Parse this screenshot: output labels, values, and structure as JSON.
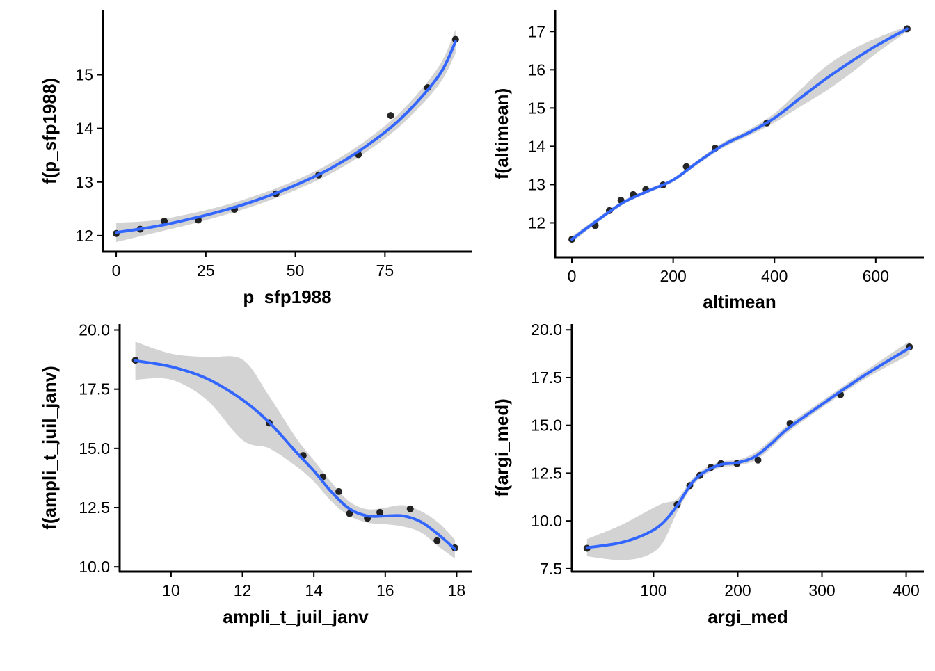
{
  "colors": {
    "line": "#3366FF",
    "ribbon": "#D3D3D3",
    "point": "#000000",
    "axis": "#000000"
  },
  "chart_data": [
    {
      "type": "scatter",
      "xlabel": "p_sfp1988",
      "ylabel": "f(p_sfp1988)",
      "xlim": [
        -3.7,
        99.2
      ],
      "ylim": [
        11.7,
        16.2
      ],
      "xticks": [
        0,
        25,
        50,
        75
      ],
      "yticks": [
        12,
        13,
        14,
        15
      ],
      "ytick_labels": [
        "12",
        "13",
        "14",
        "15"
      ],
      "points": [
        [
          0,
          12.04
        ],
        [
          6.7,
          12.12
        ],
        [
          13.4,
          12.27
        ],
        [
          22.9,
          12.29
        ],
        [
          33.0,
          12.49
        ],
        [
          44.6,
          12.78
        ],
        [
          56.5,
          13.13
        ],
        [
          67.6,
          13.51
        ],
        [
          76.6,
          14.24
        ],
        [
          86.9,
          14.76
        ],
        [
          94.7,
          15.66
        ]
      ],
      "smooth": [
        [
          0,
          12.06
        ],
        [
          10,
          12.16
        ],
        [
          20,
          12.3
        ],
        [
          30,
          12.47
        ],
        [
          40,
          12.68
        ],
        [
          50,
          12.94
        ],
        [
          60,
          13.26
        ],
        [
          70,
          13.68
        ],
        [
          80,
          14.22
        ],
        [
          90,
          14.98
        ],
        [
          94.7,
          15.62
        ]
      ],
      "ribbon_halfwidth": [
        0.18,
        0.12,
        0.1,
        0.09,
        0.09,
        0.09,
        0.1,
        0.11,
        0.13,
        0.17,
        0.22
      ],
      "grid": false
    },
    {
      "type": "scatter",
      "xlabel": "altimean",
      "ylabel": "f(altimean)",
      "xlim": [
        -33,
        695
      ],
      "ylim": [
        11.1,
        17.55
      ],
      "xticks": [
        0,
        200,
        400,
        600
      ],
      "yticks": [
        12,
        13,
        14,
        15,
        16,
        17
      ],
      "ytick_labels": [
        "12",
        "13",
        "14",
        "15",
        "16",
        "17"
      ],
      "points": [
        [
          0,
          11.57
        ],
        [
          46,
          11.93
        ],
        [
          74,
          12.32
        ],
        [
          97,
          12.59
        ],
        [
          121,
          12.74
        ],
        [
          146,
          12.87
        ],
        [
          180,
          12.99
        ],
        [
          226,
          13.47
        ],
        [
          283,
          13.95
        ],
        [
          385,
          14.61
        ],
        [
          662,
          17.07
        ]
      ],
      "smooth": [
        [
          0,
          11.57
        ],
        [
          50,
          12.06
        ],
        [
          100,
          12.52
        ],
        [
          150,
          12.83
        ],
        [
          200,
          13.12
        ],
        [
          250,
          13.6
        ],
        [
          300,
          14.04
        ],
        [
          350,
          14.36
        ],
        [
          400,
          14.74
        ],
        [
          450,
          15.25
        ],
        [
          500,
          15.75
        ],
        [
          550,
          16.2
        ],
        [
          600,
          16.62
        ],
        [
          662,
          17.07
        ]
      ],
      "ribbon_halfwidth": [
        0.08,
        0.06,
        0.05,
        0.05,
        0.05,
        0.06,
        0.07,
        0.08,
        0.12,
        0.22,
        0.32,
        0.3,
        0.2,
        0.07
      ],
      "grid": false
    },
    {
      "type": "scatter",
      "xlabel": "ampli_t_juil_janv",
      "ylabel": "f(ampli_t_juil_janv)",
      "xlim": [
        8.56,
        18.42
      ],
      "ylim": [
        9.8,
        20.25
      ],
      "xticks": [
        10,
        12,
        14,
        16,
        18
      ],
      "yticks": [
        10,
        12.5,
        15,
        17.5,
        20
      ],
      "ytick_labels": [
        "10.0",
        "12.5",
        "15.0",
        "17.5",
        "20.0"
      ],
      "points": [
        [
          9.0,
          18.72
        ],
        [
          12.75,
          16.07
        ],
        [
          13.7,
          14.7
        ],
        [
          14.25,
          13.8
        ],
        [
          14.7,
          13.18
        ],
        [
          15.0,
          12.25
        ],
        [
          15.5,
          12.05
        ],
        [
          15.85,
          12.3
        ],
        [
          16.7,
          12.45
        ],
        [
          17.45,
          11.1
        ],
        [
          17.95,
          10.8
        ]
      ],
      "smooth": [
        [
          9.0,
          18.7
        ],
        [
          10.0,
          18.45
        ],
        [
          11.0,
          17.95
        ],
        [
          12.0,
          17.05
        ],
        [
          12.75,
          16.1
        ],
        [
          13.5,
          14.85
        ],
        [
          14.0,
          14.05
        ],
        [
          14.5,
          13.15
        ],
        [
          15.0,
          12.45
        ],
        [
          15.5,
          12.15
        ],
        [
          16.0,
          12.15
        ],
        [
          16.5,
          12.15
        ],
        [
          17.0,
          11.9
        ],
        [
          17.5,
          11.35
        ],
        [
          17.95,
          10.75
        ]
      ],
      "ribbon_halfwidth": [
        0.8,
        0.55,
        0.9,
        1.7,
        1.1,
        0.6,
        0.45,
        0.4,
        0.3,
        0.28,
        0.35,
        0.45,
        0.45,
        0.5,
        0.4
      ],
      "grid": false
    },
    {
      "type": "scatter",
      "xlabel": "argi_med",
      "ylabel": "f(argi_med)",
      "xlim": [
        3,
        421
      ],
      "ylim": [
        7.35,
        20.3
      ],
      "xticks": [
        100,
        200,
        300,
        400
      ],
      "yticks": [
        7.5,
        10,
        12.5,
        15,
        17.5,
        20
      ],
      "ytick_labels": [
        "7.5",
        "10.0",
        "12.5",
        "15.0",
        "17.5",
        "20.0"
      ],
      "points": [
        [
          21,
          8.57
        ],
        [
          128,
          10.85
        ],
        [
          143,
          11.85
        ],
        [
          155,
          12.38
        ],
        [
          168,
          12.8
        ],
        [
          180,
          13.0
        ],
        [
          199,
          13.0
        ],
        [
          224,
          13.18
        ],
        [
          262,
          15.1
        ],
        [
          322,
          16.6
        ],
        [
          404,
          19.1
        ]
      ],
      "smooth": [
        [
          21,
          8.6
        ],
        [
          60,
          8.85
        ],
        [
          90,
          9.3
        ],
        [
          110,
          9.85
        ],
        [
          128,
          10.8
        ],
        [
          145,
          11.95
        ],
        [
          160,
          12.55
        ],
        [
          180,
          12.95
        ],
        [
          200,
          13.05
        ],
        [
          220,
          13.35
        ],
        [
          240,
          14.05
        ],
        [
          260,
          14.85
        ],
        [
          300,
          16.1
        ],
        [
          350,
          17.6
        ],
        [
          404,
          19.05
        ]
      ],
      "ribbon_halfwidth": [
        0.45,
        0.9,
        1.15,
        1.05,
        0.35,
        0.2,
        0.18,
        0.15,
        0.15,
        0.2,
        0.22,
        0.2,
        0.18,
        0.2,
        0.35
      ],
      "grid": false
    }
  ]
}
